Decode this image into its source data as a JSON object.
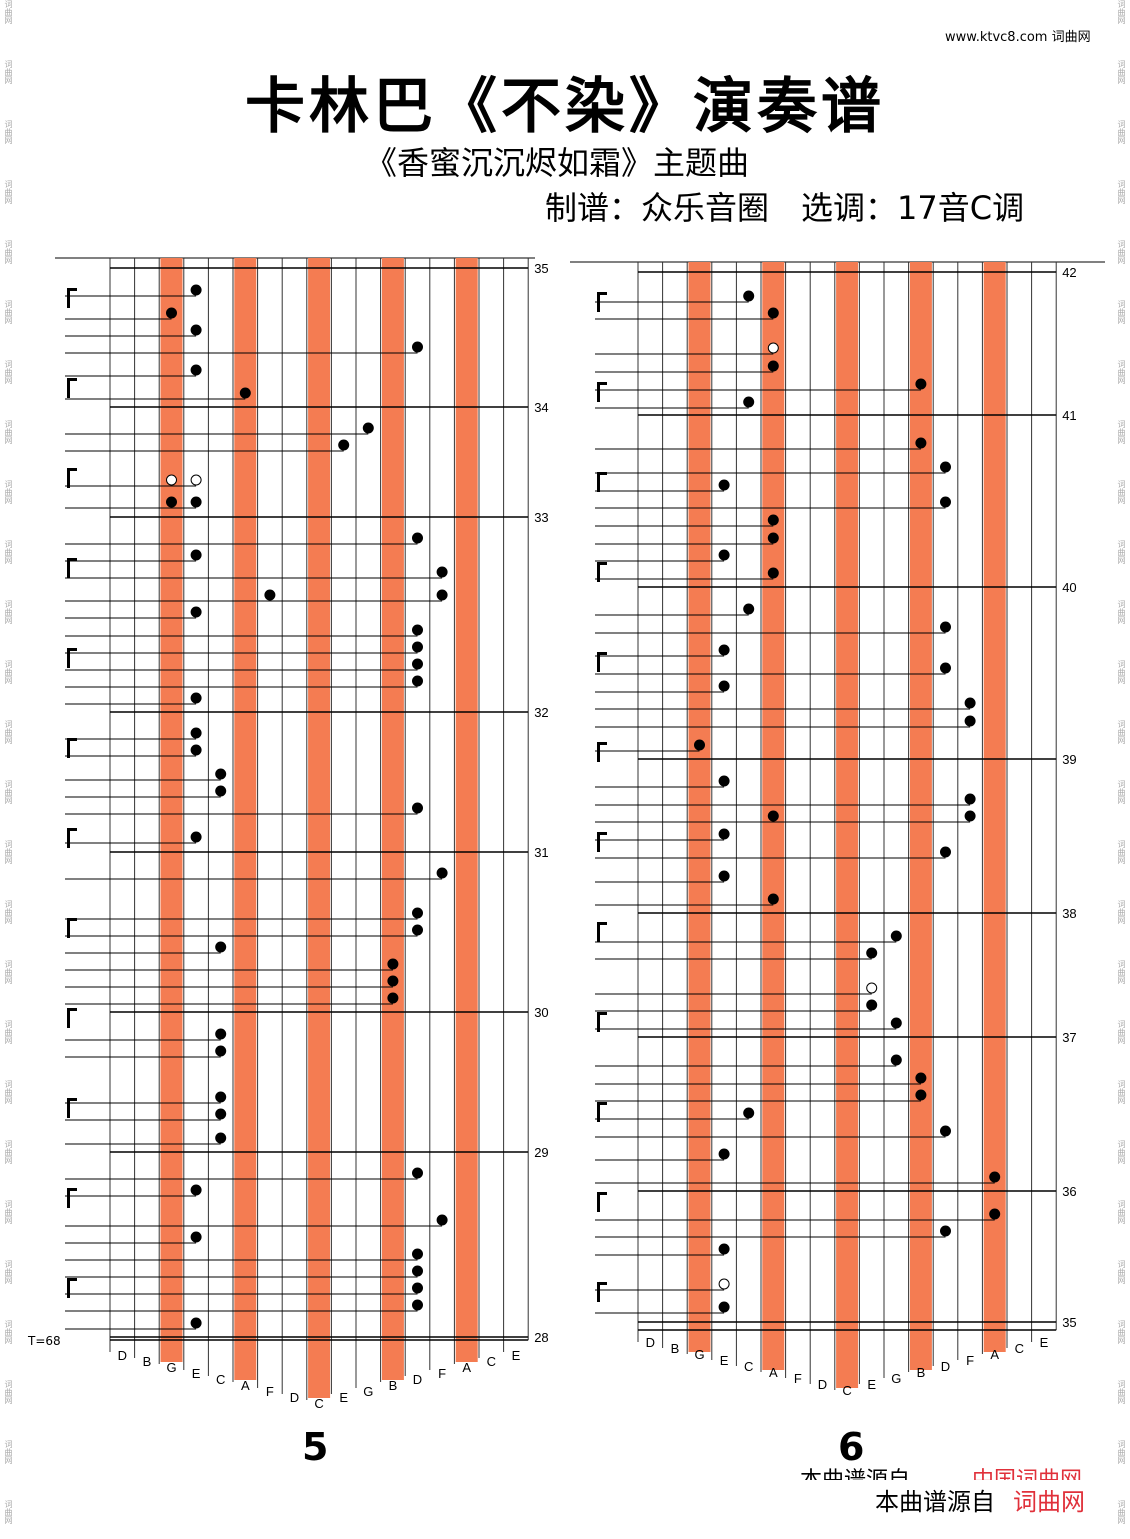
{
  "header": {
    "title": "卡林巴《不染》演奏谱",
    "subtitle": "《香蜜沉沉烬如霜》主题曲",
    "credit": "制谱：众乐音圈　选调：17音C调",
    "url": "www.ktvc8.com 词曲网"
  },
  "left_panel": {
    "tempo": "T=68",
    "page_number": "5",
    "measures": [
      35,
      34,
      33,
      32,
      31,
      30,
      29,
      28
    ],
    "tines": [
      "D",
      "B",
      "G",
      "E",
      "C",
      "A",
      "F",
      "D",
      "C",
      "E",
      "G",
      "B",
      "D",
      "F",
      "A",
      "C",
      "E"
    ]
  },
  "right_panel": {
    "page_number": "6",
    "measures": [
      42,
      41,
      40,
      39,
      38,
      37,
      36,
      35
    ],
    "tines": [
      "D",
      "B",
      "G",
      "E",
      "C",
      "A",
      "F",
      "D",
      "C",
      "E",
      "G",
      "B",
      "D",
      "F",
      "A",
      "C",
      "E"
    ]
  },
  "footer": {
    "source_cut": "本曲谱源自",
    "source_cut_site": "中国词曲网",
    "source": "本曲谱源自",
    "site": "词曲网"
  },
  "side_watermark": "词曲网"
}
